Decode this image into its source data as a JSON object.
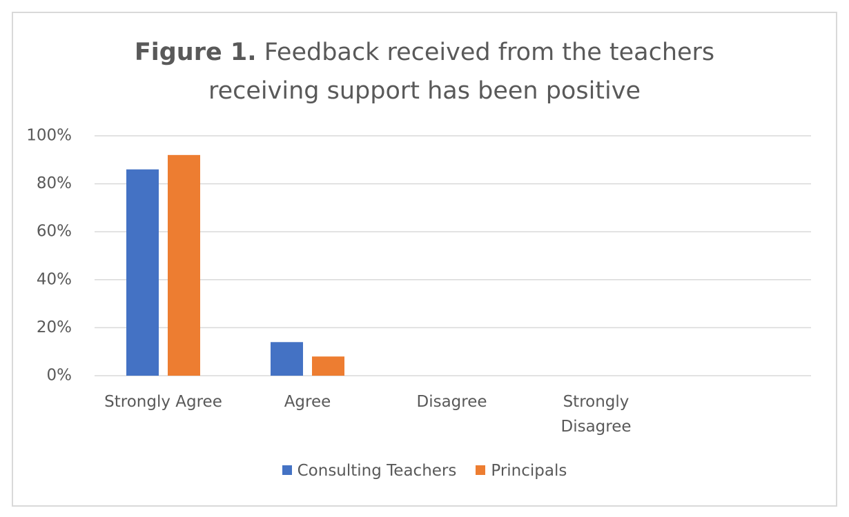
{
  "chart_data": {
    "type": "bar",
    "title_number": "Figure 1.",
    "title": "Feedback received from the teachers receiving support has been positive",
    "categories": [
      "Strongly Agree",
      "Agree",
      "Disagree",
      "Strongly Disagree"
    ],
    "series": [
      {
        "name": "Consulting Teachers",
        "color": "#4472c4",
        "values": [
          86,
          14,
          0,
          0
        ]
      },
      {
        "name": "Principals",
        "color": "#ed7d31",
        "values": [
          92,
          8,
          0,
          0
        ]
      }
    ],
    "ylim": [
      0,
      100
    ],
    "yticks": [
      {
        "value": 0,
        "label": "0%"
      },
      {
        "value": 20,
        "label": "20%"
      },
      {
        "value": 40,
        "label": "40%"
      },
      {
        "value": 60,
        "label": "60%"
      },
      {
        "value": 80,
        "label": "80%"
      },
      {
        "value": 100,
        "label": "100%"
      }
    ],
    "grid": true,
    "legend": "bottom"
  }
}
